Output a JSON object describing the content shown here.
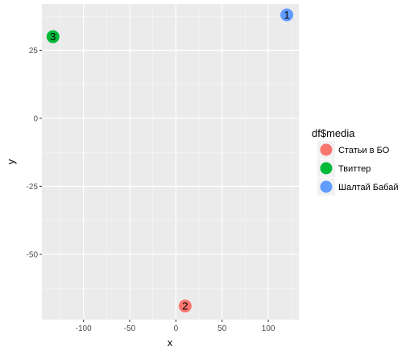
{
  "chart_data": {
    "type": "scatter",
    "title": "",
    "xlabel": "x",
    "ylabel": "y",
    "xlim": [
      -145,
      133
    ],
    "ylim": [
      -74,
      42
    ],
    "x_ticks": [
      -100,
      -50,
      0,
      50,
      100
    ],
    "x_tick_labels": [
      "-100",
      "-50",
      "0",
      "50",
      "100"
    ],
    "y_ticks": [
      -50,
      -25,
      0,
      25
    ],
    "y_tick_labels": [
      "-50",
      "-25",
      "0",
      "25"
    ],
    "grid": true,
    "legend": {
      "title": "df$media",
      "position": "right",
      "entries": [
        {
          "label": "Статьи в БО",
          "color": "#F8766D"
        },
        {
          "label": "Твиттер",
          "color": "#00BA38"
        },
        {
          "label": "Шалтай Бабай",
          "color": "#619CFF"
        }
      ]
    },
    "points": [
      {
        "x": 120,
        "y": 38,
        "label": "1",
        "series": "Шалтай Бабай"
      },
      {
        "x": 10,
        "y": -69,
        "label": "2",
        "series": "Статьи в БО"
      },
      {
        "x": -133,
        "y": 30,
        "label": "3",
        "series": "Твиттер"
      }
    ]
  },
  "colors": {
    "panel_bg": "#EBEBEB",
    "grid_major": "#FFFFFF",
    "grid_minor": "#F5F5F5",
    "legend_key_bg": "#F2F2F2"
  }
}
